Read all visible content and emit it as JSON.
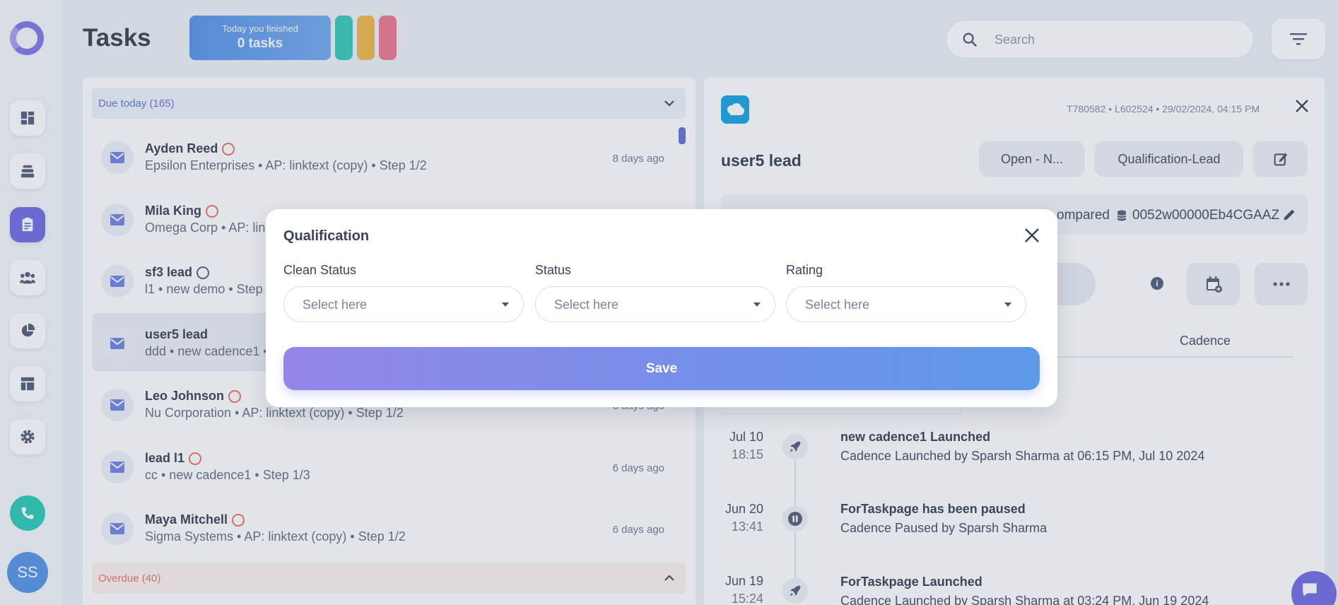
{
  "header": {
    "title": "Tasks",
    "finished_label": "Today you finished",
    "finished_count": "0 tasks",
    "search_placeholder": "Search"
  },
  "colors": {
    "accent": "#6a63e0",
    "pills": [
      "#2dc4b5",
      "#f3b23f",
      "#ee6f8c"
    ]
  },
  "sidebar": {
    "items": [
      {
        "name": "dashboard-icon"
      },
      {
        "name": "inbox-stack-icon"
      },
      {
        "name": "tasks-clipboard-icon",
        "active": true
      },
      {
        "name": "people-icon"
      },
      {
        "name": "pie-chart-icon"
      },
      {
        "name": "templates-icon"
      },
      {
        "name": "gear-icon"
      }
    ],
    "avatar_initials": "SS"
  },
  "task_list": {
    "due_label": "Due today (165)",
    "overdue_label": "Overdue (40)",
    "tasks": [
      {
        "name": "Ayden Reed",
        "sub": "Epsilon Enterprises • AP: linktext (copy) • Step 1/2",
        "time": "8 days ago"
      },
      {
        "name": "Mila King",
        "sub": "Omega Corp • AP: linktext (copy) • Step 1/2",
        "time": ""
      },
      {
        "name": "sf3 lead",
        "sub": "l1 • new demo • Step 1/2",
        "time": ""
      },
      {
        "name": "user5 lead",
        "sub": "ddd • new cadence1 • Step 1/3",
        "time": ""
      },
      {
        "name": "Leo Johnson",
        "sub": "Nu Corporation • AP: linktext (copy) • Step 1/2",
        "time": "6 days ago"
      },
      {
        "name": "lead l1",
        "sub": "cc • new cadence1 • Step 1/3",
        "time": "6 days ago"
      },
      {
        "name": "Maya Mitchell",
        "sub": "Sigma Systems • AP: linktext (copy) • Step 1/2",
        "time": "6 days ago"
      }
    ]
  },
  "detail": {
    "meta": "T780582 • L602524 • 29/02/2024, 04:15 PM",
    "lead_name": "user5 lead",
    "status_chip": "Open - N...",
    "stage_chip": "Qualification-Lead",
    "compared_text": "ompared",
    "crm_id": "0052w00000Eb4CGAAZ",
    "tab_cadence": "Cadence",
    "timeline": [
      {
        "date": "Jul 10",
        "time": "18:15",
        "title": "new cadence1 Launched",
        "desc": "Cadence Launched by Sparsh Sharma at 06:15 PM, Jul 10 2024",
        "icon": "rocket-icon"
      },
      {
        "date": "Jun 20",
        "time": "13:41",
        "title": "ForTaskpage has been paused",
        "desc": "Cadence Paused by Sparsh Sharma",
        "icon": "pause-icon"
      },
      {
        "date": "Jun 19",
        "time": "15:24",
        "title": "ForTaskpage Launched",
        "desc": "Cadence Launched by Sparsh Sharma at 03:24 PM, Jun 19 2024",
        "icon": "rocket-icon"
      }
    ]
  },
  "modal": {
    "title": "Qualification",
    "fields": [
      {
        "label": "Clean Status",
        "value": "Select here"
      },
      {
        "label": "Status",
        "value": "Select here"
      },
      {
        "label": "Rating",
        "value": "Select here"
      }
    ],
    "save_label": "Save"
  }
}
